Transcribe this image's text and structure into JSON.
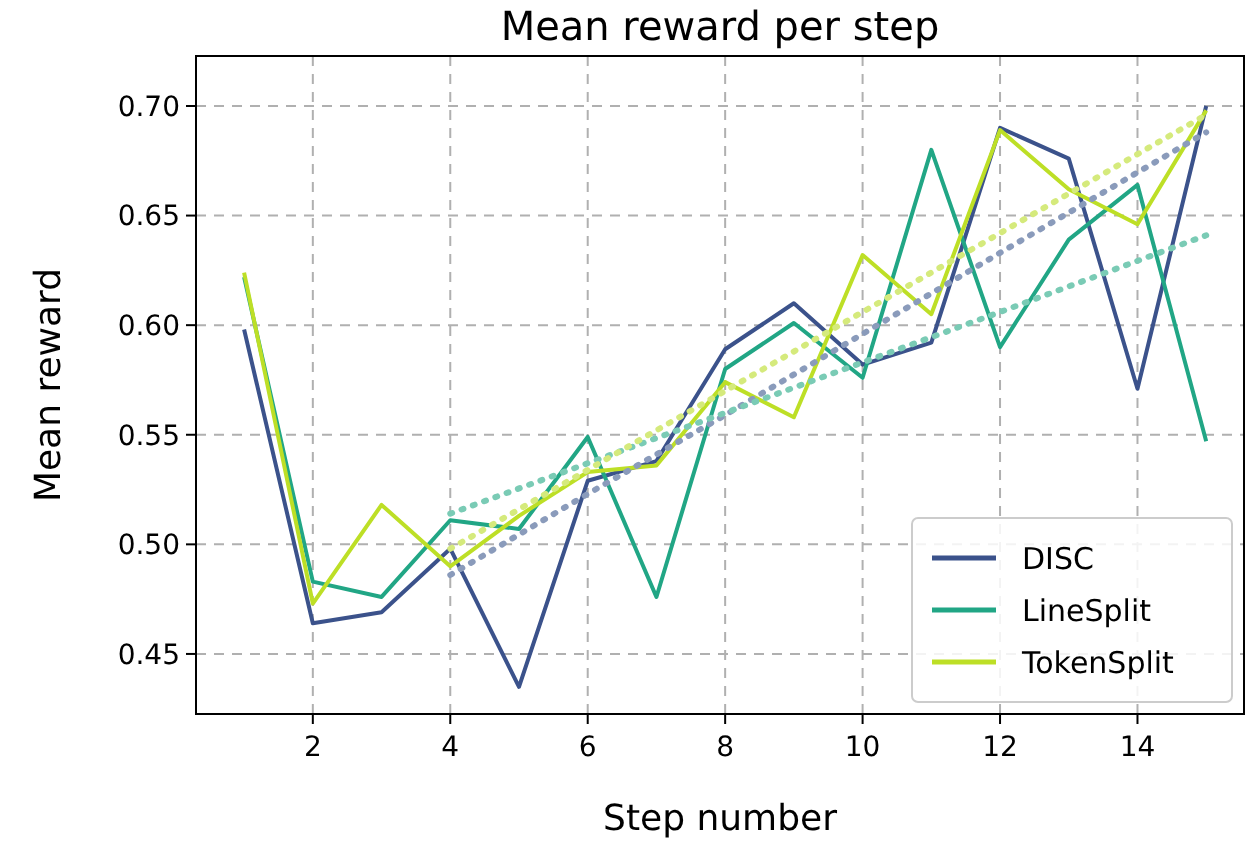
{
  "chart_data": {
    "type": "line",
    "title": "Mean reward per step",
    "xlabel": "Step number",
    "ylabel": "Mean reward",
    "x": [
      1,
      2,
      3,
      4,
      5,
      6,
      7,
      8,
      9,
      10,
      11,
      12,
      13,
      14,
      15
    ],
    "xlim": [
      0.3,
      15.55
    ],
    "xticks": [
      2,
      4,
      6,
      8,
      10,
      12,
      14
    ],
    "ylim": [
      0.4226,
      0.7228
    ],
    "yticks": [
      {
        "value": 0.45,
        "label": "0.45"
      },
      {
        "value": 0.5,
        "label": "0.50"
      },
      {
        "value": 0.55,
        "label": "0.55"
      },
      {
        "value": 0.6,
        "label": "0.60"
      },
      {
        "value": 0.65,
        "label": "0.65"
      },
      {
        "value": 0.7,
        "label": "0.70"
      }
    ],
    "grid": true,
    "legend": "bottom right",
    "series": [
      {
        "name": "DISC",
        "color": "#3b528b",
        "values": [
          0.598,
          0.464,
          0.469,
          0.498,
          0.435,
          0.529,
          0.538,
          0.589,
          0.61,
          0.582,
          0.592,
          0.69,
          0.676,
          0.571,
          0.7
        ]
      },
      {
        "name": "LineSplit",
        "color": "#21a685",
        "values": [
          0.622,
          0.483,
          0.476,
          0.511,
          0.507,
          0.549,
          0.476,
          0.58,
          0.601,
          0.576,
          0.68,
          0.59,
          0.639,
          0.664,
          0.547
        ]
      },
      {
        "name": "TokenSplit",
        "color": "#bddf26",
        "values": [
          0.624,
          0.473,
          0.518,
          0.49,
          0.513,
          0.533,
          0.536,
          0.574,
          0.558,
          0.632,
          0.605,
          0.689,
          0.662,
          0.646,
          0.698
        ]
      },
      {
        "type": "line",
        "line_style": "dotted",
        "color": "#8a9bbb",
        "x": [
          4,
          6,
          8,
          10,
          12,
          15
        ],
        "values": [
          0.486,
          0.523,
          0.559,
          0.596,
          0.633,
          0.688
        ]
      },
      {
        "type": "line",
        "line_style": "dotted",
        "color": "#7acbb5",
        "x": [
          4,
          6,
          8,
          10,
          12,
          15
        ],
        "values": [
          0.514,
          0.537,
          0.56,
          0.583,
          0.606,
          0.641
        ]
      },
      {
        "type": "line",
        "line_style": "dotted",
        "color": "#d5ea7c",
        "x": [
          4,
          6,
          8,
          10,
          12,
          15
        ],
        "values": [
          0.498,
          0.534,
          0.57,
          0.606,
          0.642,
          0.696
        ]
      }
    ]
  }
}
